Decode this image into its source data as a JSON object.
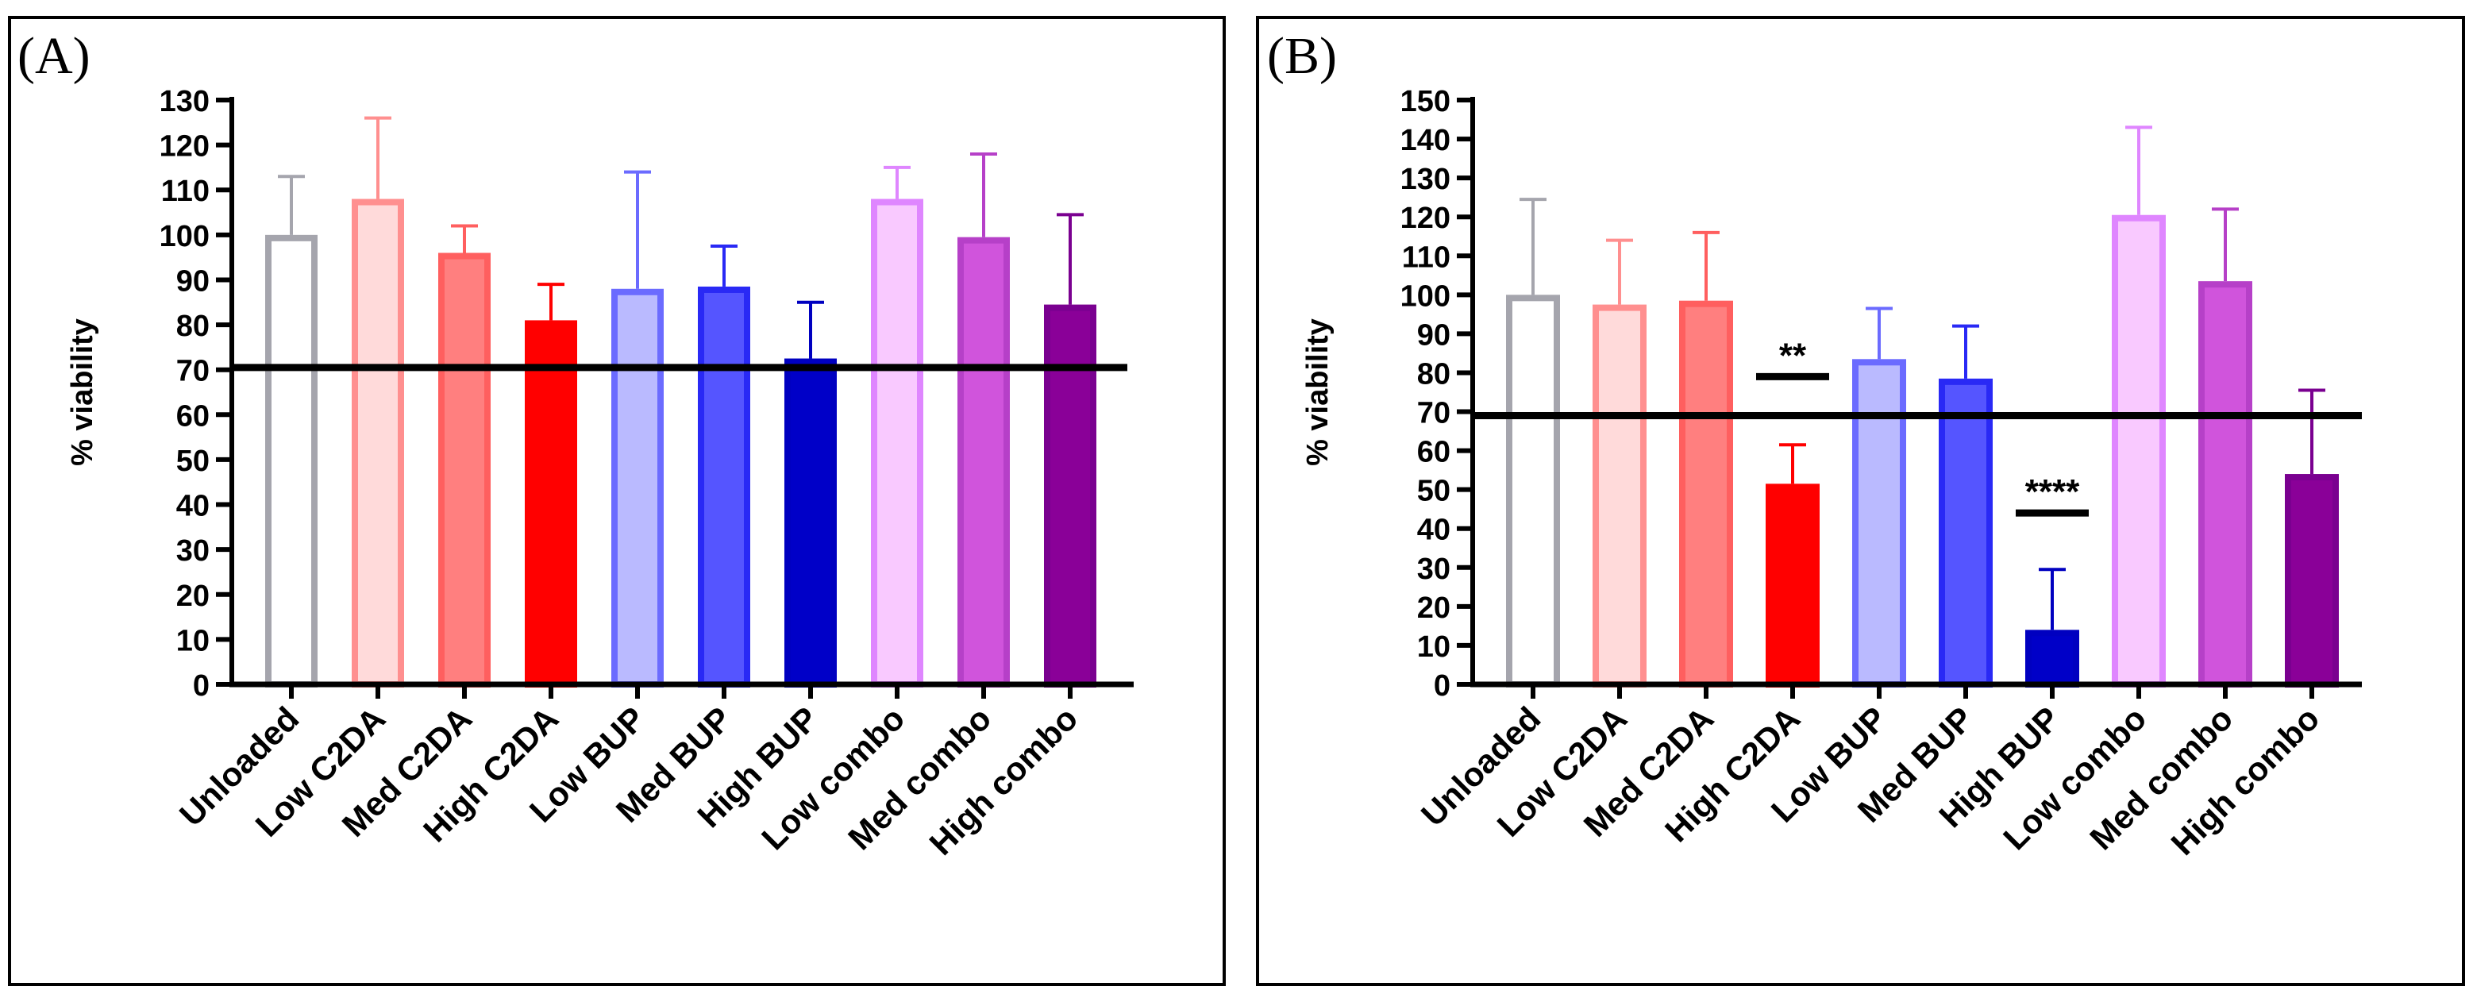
{
  "chart_data": [
    {
      "type": "bar",
      "panel_label": "(A)",
      "ylabel": "% viability",
      "ylim": [
        0,
        130
      ],
      "ytick_step": 10,
      "threshold": 70.5,
      "categories": [
        "Unloaded",
        "Low C2DA",
        "Med C2DA",
        "High C2DA",
        "Low BUP",
        "Med BUP",
        "High BUP",
        "Low combo",
        "Med combo",
        "High combo"
      ],
      "values": [
        100,
        108,
        96,
        81,
        88,
        88.5,
        72.5,
        108,
        99.5,
        84.5
      ],
      "errors": [
        13,
        18,
        6,
        8,
        26,
        9,
        12.5,
        7,
        18.5,
        20
      ],
      "edge_colors": [
        "#a5a5ad",
        "#ff8f8f",
        "#ff5f5f",
        "#ff0000",
        "#6b6bff",
        "#2929f5",
        "#0000c0",
        "#df86ff",
        "#b640c8",
        "#7a0090"
      ],
      "fill_colors": [
        "#ffffff",
        "#ffdada",
        "#ff7f7f",
        "#ff0000",
        "#babaff",
        "#5555ff",
        "#0000c8",
        "#f9c9ff",
        "#d054dc",
        "#8a0098"
      ],
      "significance": []
    },
    {
      "type": "bar",
      "panel_label": "(B)",
      "ylabel": "% viability",
      "ylim": [
        0,
        150
      ],
      "ytick_step": 10,
      "threshold": 69,
      "categories": [
        "Unloaded",
        "Low C2DA",
        "Med C2DA",
        "High C2DA",
        "Low BUP",
        "Med BUP",
        "High BUP",
        "Low combo",
        "Med combo",
        "High combo"
      ],
      "values": [
        100,
        97.5,
        98.5,
        51.5,
        83.5,
        78.5,
        14,
        120.5,
        103.5,
        54
      ],
      "errors": [
        24.5,
        16.5,
        17.5,
        10,
        13,
        13.5,
        15.5,
        22.5,
        18.5,
        21.5
      ],
      "edge_colors": [
        "#a5a5ad",
        "#ff8f8f",
        "#ff5f5f",
        "#ff0000",
        "#6b6bff",
        "#2929f5",
        "#0000c0",
        "#df86ff",
        "#b640c8",
        "#7a0090"
      ],
      "fill_colors": [
        "#ffffff",
        "#ffdada",
        "#ff7f7f",
        "#ff0000",
        "#babaff",
        "#5555ff",
        "#0000c8",
        "#f9c9ff",
        "#d054dc",
        "#8a0098"
      ],
      "significance": [
        {
          "index": 3,
          "label": "**",
          "line_value": 79
        },
        {
          "index": 6,
          "label": "****",
          "line_value": 44
        }
      ]
    }
  ]
}
